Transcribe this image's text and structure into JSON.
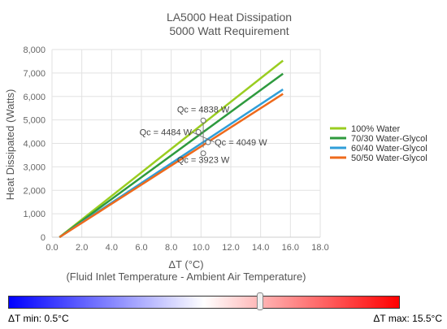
{
  "chart_data": {
    "type": "line",
    "title": "LA5000 Heat Dissipation",
    "subtitle": "5000 Watt Requirement",
    "xlabel": "ΔT (°C)",
    "xlabel_sub": "(Fluid Inlet Temperature - Ambient Air Temperature)",
    "ylabel": "Heat Dissipated (Watts)",
    "xlim": [
      0,
      18
    ],
    "ylim": [
      0,
      8000
    ],
    "x_ticks": [
      "0.0",
      "2.0",
      "4.0",
      "6.0",
      "8.0",
      "10.0",
      "12.0",
      "14.0",
      "16.0",
      "18.0"
    ],
    "y_ticks": [
      "0",
      "1,000",
      "2,000",
      "3,000",
      "4,000",
      "5,000",
      "6,000",
      "7,000",
      "8,000"
    ],
    "grid": true,
    "legend_position": "right",
    "series": [
      {
        "name": "100% Water",
        "color": "#9acd20",
        "points": [
          [
            0.5,
            0
          ],
          [
            15.5,
            7530
          ]
        ]
      },
      {
        "name": "70/30 Water-Glycol",
        "color": "#2e9a3e",
        "points": [
          [
            0.5,
            0
          ],
          [
            15.5,
            6970
          ]
        ]
      },
      {
        "name": "60/40 Water-Glycol",
        "color": "#2f9ed8",
        "points": [
          [
            0.5,
            0
          ],
          [
            15.5,
            6300
          ]
        ]
      },
      {
        "name": "50/50 Water-Glycol",
        "color": "#ee6a1c",
        "points": [
          [
            0.5,
            0
          ],
          [
            15.5,
            6110
          ]
        ]
      }
    ],
    "annotations": [
      {
        "text": "Qc = 4838 W",
        "x": 10.15,
        "y": 4838
      },
      {
        "text": "Qc = 4484 W",
        "x": 10.15,
        "y": 4484
      },
      {
        "text": "Qc = 4049 W",
        "x": 10.15,
        "y": 4049
      },
      {
        "text": "Qc = 3923 W",
        "x": 10.15,
        "y": 3923
      }
    ],
    "marker_x": 10.15
  },
  "slider": {
    "min_label": "ΔT min: 0.5°C",
    "max_label": "ΔT max: 15.5°C",
    "min": 0.5,
    "max": 15.5,
    "value": 10.15,
    "gradient_colors": [
      "#0000ff",
      "#ffffff",
      "#ff0000"
    ]
  }
}
